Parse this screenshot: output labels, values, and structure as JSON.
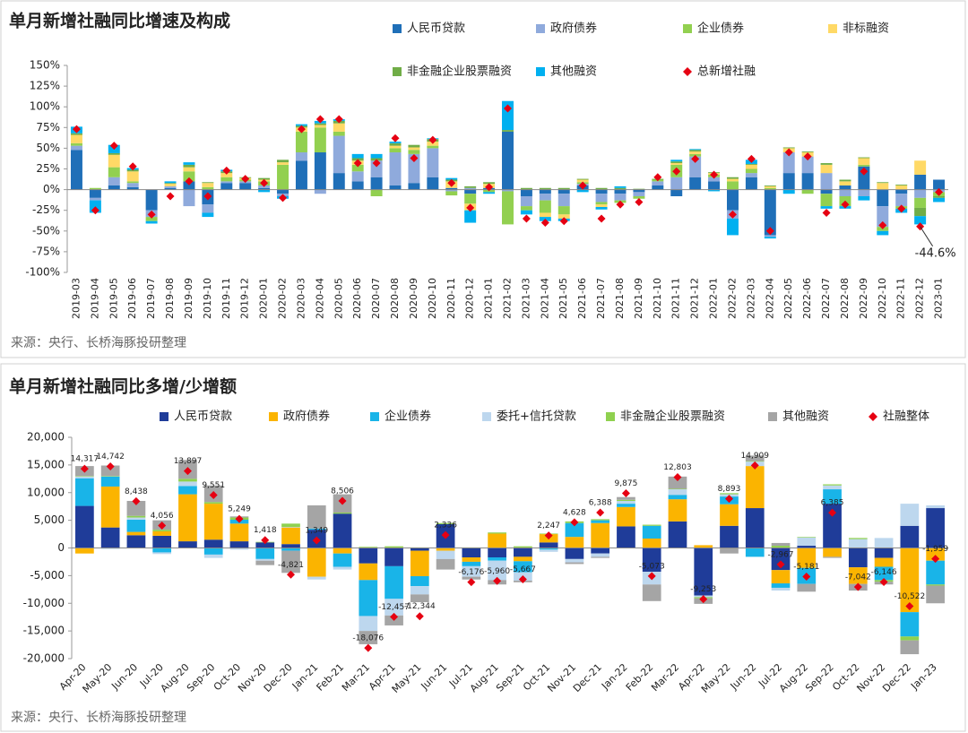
{
  "chart_data": [
    {
      "type": "stacked-bar",
      "title": "单月新增社融同比增速及构成",
      "source": "来源：央行、长桥海豚投研整理",
      "categories": [
        "2019-03",
        "2019-04",
        "2019-05",
        "2019-06",
        "2019-07",
        "2019-08",
        "2019-09",
        "2019-10",
        "2019-11",
        "2019-12",
        "2020-01",
        "2020-02",
        "2020-03",
        "2020-04",
        "2020-05",
        "2020-06",
        "2020-07",
        "2020-08",
        "2020-09",
        "2020-10",
        "2020-11",
        "2020-12",
        "2021-01",
        "2021-02",
        "2021-03",
        "2021-04",
        "2021-05",
        "2021-06",
        "2021-07",
        "2021-08",
        "2021-09",
        "2021-10",
        "2021-11",
        "2021-12",
        "2022-01",
        "2022-02",
        "2022-03",
        "2022-04",
        "2022-05",
        "2022-06",
        "2022-07",
        "2022-08",
        "2022-09",
        "2022-10",
        "2022-11",
        "2022-12",
        "2023-01"
      ],
      "series": [
        {
          "name": "人民币贷款",
          "color": "#1f6fb8",
          "values": [
            48,
            -10,
            5,
            3,
            -25,
            2,
            10,
            -18,
            8,
            8,
            2,
            -5,
            35,
            45,
            20,
            10,
            15,
            5,
            8,
            15,
            2,
            -5,
            2,
            70,
            -8,
            -5,
            -5,
            5,
            -5,
            -5,
            -3,
            5,
            -8,
            15,
            10,
            -25,
            15,
            -55,
            20,
            20,
            -5,
            5,
            28,
            -20,
            -5,
            18,
            12
          ]
        },
        {
          "name": "政府债券",
          "color": "#8faadc",
          "values": [
            5,
            -3,
            10,
            5,
            -8,
            2,
            -20,
            -10,
            2,
            2,
            3,
            -3,
            10,
            -5,
            45,
            12,
            20,
            40,
            35,
            35,
            -2,
            2,
            0,
            -2,
            -12,
            -8,
            -15,
            2,
            -10,
            -8,
            -5,
            5,
            15,
            25,
            5,
            -10,
            5,
            -2,
            25,
            20,
            20,
            -8,
            -8,
            -25,
            -15,
            -10,
            -3
          ]
        },
        {
          "name": "企业债券",
          "color": "#92d050",
          "values": [
            3,
            2,
            12,
            2,
            -5,
            0,
            12,
            3,
            5,
            2,
            5,
            30,
            25,
            30,
            5,
            8,
            -8,
            5,
            5,
            3,
            -5,
            -12,
            -3,
            -40,
            -5,
            -15,
            -10,
            2,
            -3,
            -3,
            -3,
            2,
            15,
            3,
            3,
            10,
            5,
            2,
            0,
            -5,
            -15,
            -12,
            2,
            -5,
            -3,
            -12,
            -5
          ]
        },
        {
          "name": "非标融资",
          "color": "#ffd966",
          "values": [
            10,
            0,
            15,
            12,
            0,
            3,
            5,
            5,
            5,
            2,
            2,
            3,
            5,
            3,
            10,
            5,
            0,
            3,
            3,
            5,
            8,
            -8,
            5,
            0,
            0,
            -5,
            -5,
            3,
            -3,
            0,
            0,
            0,
            2,
            3,
            2,
            3,
            5,
            2,
            5,
            5,
            10,
            5,
            8,
            8,
            5,
            17,
            0
          ]
        },
        {
          "name": "非金融企业股票融资",
          "color": "#70ad47",
          "values": [
            2,
            0,
            2,
            2,
            0,
            1,
            3,
            1,
            2,
            1,
            2,
            3,
            2,
            2,
            3,
            3,
            3,
            3,
            3,
            3,
            2,
            2,
            2,
            2,
            2,
            2,
            2,
            1,
            2,
            2,
            1,
            1,
            2,
            2,
            1,
            2,
            1,
            1,
            1,
            1,
            2,
            2,
            1,
            1,
            1,
            -10,
            -2
          ]
        },
        {
          "name": "其他融资",
          "color": "#00b0f0",
          "values": [
            8,
            -15,
            10,
            2,
            -3,
            2,
            3,
            -5,
            2,
            0,
            -3,
            -3,
            2,
            3,
            2,
            5,
            5,
            2,
            0,
            1,
            2,
            -15,
            -2,
            35,
            -5,
            -5,
            -3,
            -3,
            -3,
            2,
            0,
            0,
            2,
            1,
            -2,
            -20,
            5,
            -2,
            -5,
            0,
            -3,
            -3,
            -5,
            -5,
            -5,
            -10,
            -5
          ]
        }
      ],
      "total": {
        "name": "总新增社融",
        "color": "#e60012",
        "values": [
          73,
          -25,
          53,
          28,
          -30,
          -8,
          10,
          -8,
          23,
          13,
          8,
          -10,
          73,
          85,
          85,
          32,
          32,
          62,
          38,
          60,
          8,
          -22,
          3,
          98,
          -35,
          -40,
          -38,
          5,
          -35,
          -18,
          -15,
          15,
          22,
          37,
          18,
          -30,
          37,
          -50,
          45,
          40,
          -28,
          -18,
          22,
          -43,
          -23,
          -44.6,
          -3
        ]
      },
      "annotation": "-44.6%",
      "ylim": [
        -100,
        150
      ],
      "yticks": [
        {
          "value": -100,
          "label": "-100%"
        },
        {
          "value": -75,
          "label": "-75%"
        },
        {
          "value": -50,
          "label": "-50%"
        },
        {
          "value": -25,
          "label": "-25%"
        },
        {
          "value": 0,
          "label": "0%"
        },
        {
          "value": 25,
          "label": "25%"
        },
        {
          "value": 50,
          "label": "50%"
        },
        {
          "value": 75,
          "label": "75%"
        },
        {
          "value": 100,
          "label": "100%"
        },
        {
          "value": 125,
          "label": "125%"
        },
        {
          "value": 150,
          "label": "150%"
        }
      ],
      "grid": false
    },
    {
      "type": "stacked-bar",
      "title": "单月新增社融同比多增/少增额",
      "source": "来源：央行、长桥海豚投研整理",
      "categories": [
        "Apr-20",
        "May-20",
        "Jun-20",
        "Jul-20",
        "Aug-20",
        "Sep-20",
        "Oct-20",
        "Nov-20",
        "Dec-20",
        "Jan-21",
        "Feb-21",
        "Mar-21",
        "Apr-21",
        "May-21",
        "Jun-21",
        "Jul-21",
        "Aug-21",
        "Sep-21",
        "Oct-21",
        "Nov-21",
        "Dec-21",
        "Jan-22",
        "Feb-22",
        "Mar-22",
        "Apr-22",
        "May-22",
        "Jun-22",
        "Jul-22",
        "Aug-22",
        "Sep-22",
        "Oct-22",
        "Nov-22",
        "Dec-22",
        "Jan-23"
      ],
      "series": [
        {
          "name": "人民币贷款",
          "color": "#1f3c99",
          "values": [
            7600,
            3700,
            2300,
            2200,
            1200,
            1500,
            1200,
            1000,
            700,
            3300,
            6200,
            -2800,
            -3300,
            -500,
            4300,
            -1700,
            -1700,
            -1600,
            1000,
            -2000,
            -1000,
            3900,
            -4300,
            4800,
            -8600,
            4000,
            7200,
            -4000,
            400,
            8000,
            -3500,
            -1800,
            4000,
            7200
          ]
        },
        {
          "name": "政府债券",
          "color": "#fbb400",
          "values": [
            -1000,
            7400,
            600,
            800,
            8500,
            6500,
            3200,
            0,
            3000,
            -5200,
            -1000,
            -3000,
            0,
            -4600,
            -500,
            -800,
            2600,
            -800,
            1500,
            2000,
            4500,
            3500,
            1700,
            4000,
            500,
            3900,
            7600,
            -2400,
            -3600,
            -1600,
            -3000,
            -1600,
            -11600,
            -2300
          ]
        },
        {
          "name": "企业债券",
          "color": "#19b4e8",
          "values": [
            5000,
            1800,
            2200,
            -800,
            1500,
            -1200,
            700,
            -2000,
            -500,
            200,
            -2400,
            -6500,
            -5900,
            -1800,
            0,
            -800,
            -600,
            -2000,
            -300,
            2500,
            500,
            600,
            2300,
            800,
            0,
            1400,
            -1600,
            -800,
            -2900,
            2600,
            0,
            -2400,
            -4400,
            -4300
          ]
        },
        {
          "name": "委托+信托贷款",
          "color": "#bdd7ee",
          "values": [
            300,
            -200,
            400,
            -300,
            800,
            -600,
            -300,
            -300,
            100,
            -500,
            -500,
            -2700,
            -3000,
            -1500,
            -1500,
            -1900,
            -3500,
            -1500,
            -400,
            -600,
            -600,
            500,
            -2300,
            1000,
            -300,
            400,
            800,
            -500,
            1500,
            700,
            1600,
            1800,
            4000,
            500
          ]
        },
        {
          "name": "非金融企业股票融资",
          "color": "#8fd14f",
          "values": [
            100,
            100,
            300,
            300,
            500,
            300,
            400,
            100,
            600,
            0,
            200,
            200,
            300,
            100,
            200,
            100,
            200,
            300,
            100,
            300,
            200,
            200,
            200,
            100,
            -200,
            200,
            100,
            400,
            100,
            200,
            200,
            -300,
            -700,
            -200
          ]
        },
        {
          "name": "其他融资",
          "color": "#a5a5a5",
          "values": [
            1800,
            1900,
            2700,
            1700,
            3400,
            3000,
            200,
            -800,
            -4000,
            4200,
            3300,
            -2400,
            -1800,
            -1400,
            -1900,
            -500,
            -800,
            -300,
            0,
            -300,
            -200,
            500,
            -3000,
            2200,
            -1000,
            -1000,
            1000,
            500,
            -1400,
            -200,
            -1200,
            -500,
            -2500,
            -3200
          ]
        }
      ],
      "total": {
        "name": "社融整体",
        "color": "#e60012",
        "values": [
          14317,
          14742,
          8438,
          4056,
          13897,
          9551,
          5249,
          1418,
          -4821,
          1349,
          8506,
          -18076,
          -12457,
          -12344,
          2336,
          -6176,
          -5960,
          -5667,
          2247,
          4628,
          6388,
          9875,
          -5073,
          12803,
          -9253,
          8893,
          14909,
          -2967,
          -5181,
          6385,
          -7042,
          -6146,
          -10522,
          -1959
        ],
        "value_labels": [
          "14,317",
          "14,742",
          "8,438",
          "4,056",
          "13,897",
          "9,551",
          "5,249",
          "1,418",
          "-4,821",
          "1,349",
          "8,506",
          "-18,076",
          "-12,457",
          "-12,344",
          "2,336",
          "-6,176",
          "-5,960",
          "-5,667",
          "2,247",
          "4,628",
          "6,388",
          "9,875",
          "-5,073",
          "12,803",
          "-9,253",
          "8,893",
          "14,909",
          "-2,967",
          "-5,181",
          "6,385",
          "-7,042",
          "-6,146",
          "-10,522",
          "-1,959"
        ]
      },
      "ylim": [
        -20000,
        20000
      ],
      "yticks": [
        {
          "value": -20000,
          "label": "-20,000"
        },
        {
          "value": -15000,
          "label": "-15,000"
        },
        {
          "value": -10000,
          "label": "-10,000"
        },
        {
          "value": -5000,
          "label": "-5,000"
        },
        0,
        {
          "value": 5000,
          "label": "5,000"
        },
        {
          "value": 10000,
          "label": "10,000"
        },
        {
          "value": 15000,
          "label": "15,000"
        },
        {
          "value": 20000,
          "label": "20,000"
        }
      ],
      "grid": false
    }
  ]
}
